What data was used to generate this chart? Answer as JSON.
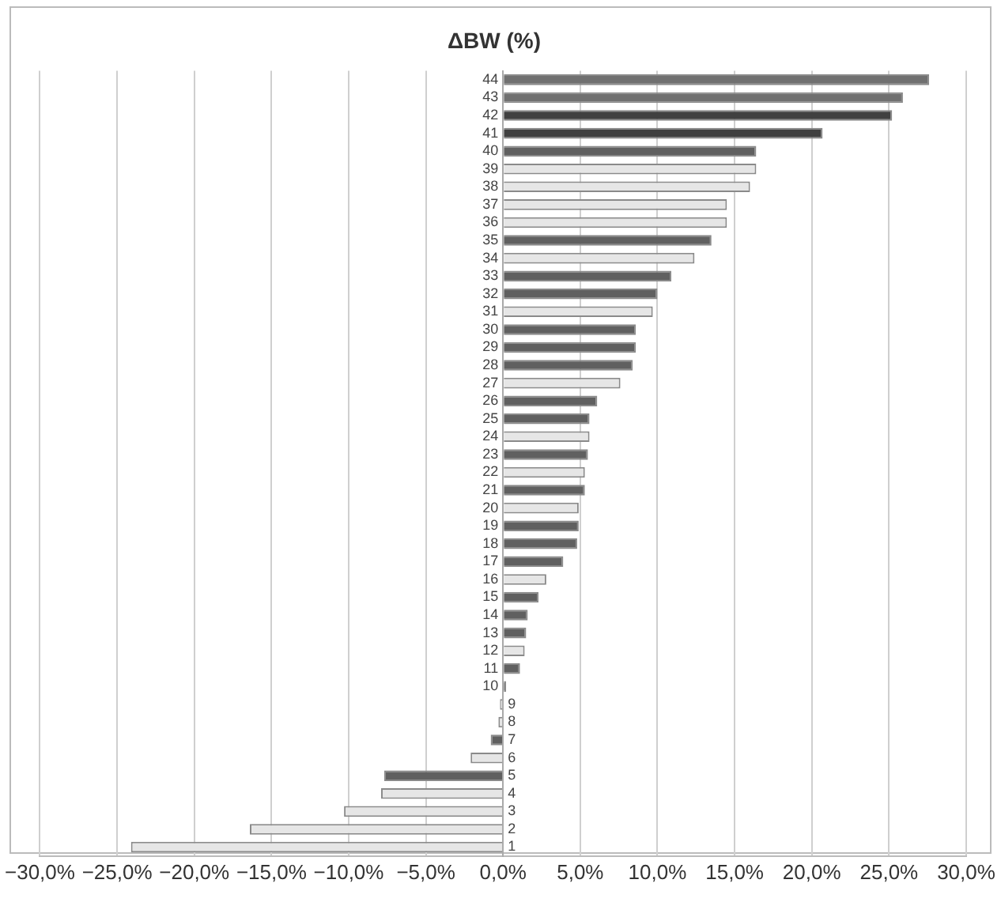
{
  "chart_data": {
    "type": "bar",
    "orientation": "horizontal",
    "title": "ΔBW (%)",
    "categories": [
      "44",
      "43",
      "42",
      "41",
      "40",
      "39",
      "38",
      "37",
      "36",
      "35",
      "34",
      "33",
      "32",
      "31",
      "30",
      "29",
      "28",
      "27",
      "26",
      "25",
      "24",
      "23",
      "22",
      "21",
      "20",
      "19",
      "18",
      "17",
      "16",
      "15",
      "14",
      "13",
      "12",
      "11",
      "10",
      "9",
      "8",
      "7",
      "6",
      "5",
      "4",
      "3",
      "2",
      "1"
    ],
    "values": [
      27.6,
      25.9,
      25.2,
      20.7,
      16.4,
      16.4,
      16.0,
      14.5,
      14.5,
      13.5,
      12.4,
      10.9,
      10.0,
      9.7,
      8.6,
      8.6,
      8.4,
      7.6,
      6.1,
      5.6,
      5.6,
      5.5,
      5.3,
      5.3,
      4.9,
      4.9,
      4.8,
      3.9,
      2.8,
      2.3,
      1.6,
      1.5,
      1.4,
      1.1,
      0.2,
      -0.2,
      -0.3,
      -0.8,
      -2.1,
      -7.7,
      -7.9,
      -10.3,
      -16.4,
      -24.1
    ],
    "colors": [
      "#707070",
      "#707070",
      "#404040",
      "#404040",
      "#606060",
      "#e6e6e6",
      "#e6e6e6",
      "#e6e6e6",
      "#e6e6e6",
      "#606060",
      "#e6e6e6",
      "#606060",
      "#606060",
      "#e6e6e6",
      "#606060",
      "#606060",
      "#606060",
      "#e6e6e6",
      "#606060",
      "#606060",
      "#e6e6e6",
      "#606060",
      "#e6e6e6",
      "#606060",
      "#e6e6e6",
      "#606060",
      "#606060",
      "#606060",
      "#e6e6e6",
      "#606060",
      "#606060",
      "#606060",
      "#e6e6e6",
      "#606060",
      "#606060",
      "#e6e6e6",
      "#e6e6e6",
      "#606060",
      "#e6e6e6",
      "#606060",
      "#e6e6e6",
      "#e6e6e6",
      "#e6e6e6",
      "#e6e6e6"
    ],
    "xlim": [
      -30,
      30
    ],
    "xticks": [
      {
        "value": -30,
        "label": "−30,0%"
      },
      {
        "value": -25,
        "label": "−25,0%"
      },
      {
        "value": -20,
        "label": "−20,0%"
      },
      {
        "value": -15,
        "label": "−15,0%"
      },
      {
        "value": -10,
        "label": "−10,0%"
      },
      {
        "value": -5,
        "label": "−5,0%"
      },
      {
        "value": 0,
        "label": "0,0%"
      },
      {
        "value": 5,
        "label": "5,0%"
      },
      {
        "value": 10,
        "label": "10,0%"
      },
      {
        "value": 15,
        "label": "15,0%"
      },
      {
        "value": 20,
        "label": "20,0%"
      },
      {
        "value": 25,
        "label": "25,0%"
      },
      {
        "value": 30,
        "label": "30,0%"
      }
    ],
    "grid": "x",
    "legend": false
  }
}
